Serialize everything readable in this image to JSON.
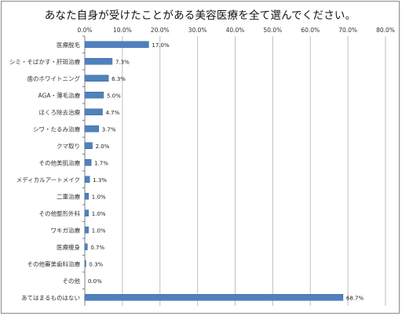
{
  "chart_data": {
    "type": "bar",
    "orientation": "horizontal",
    "title": "あなた自身が受けたことがある美容医療を全て選んでください。",
    "xlim": [
      0,
      80
    ],
    "xticks": [
      "0.0%",
      "10.0%",
      "20.0%",
      "30.0%",
      "40.0%",
      "50.0%",
      "60.0%",
      "70.0%",
      "80.0%"
    ],
    "grid": true,
    "bar_color": "#4f81bd",
    "categories": [
      "医療脱毛",
      "シミ・そばかす・肝斑治療",
      "歯のホワイトニング",
      "AGA・薄毛治療",
      "ほくろ除去治療",
      "シワ・たるみ治療",
      "クマ取り",
      "その他美肌治療",
      "メディカルアートメイク",
      "二重治療",
      "その他整形外科",
      "ワキガ治療",
      "医療痩身",
      "その他審美歯科治療",
      "その他",
      "あてはまるものはない"
    ],
    "values": [
      17.0,
      7.3,
      6.3,
      5.0,
      4.7,
      3.7,
      2.0,
      1.7,
      1.3,
      1.0,
      1.0,
      1.0,
      0.7,
      0.3,
      0.0,
      68.7
    ],
    "data_labels": [
      "17.0%",
      "7.3%",
      "6.3%",
      "5.0%",
      "4.7%",
      "3.7%",
      "2.0%",
      "1.7%",
      "1.3%",
      "1.0%",
      "1.0%",
      "1.0%",
      "0.7%",
      "0.3%",
      "0.0%",
      "68.7%"
    ]
  }
}
